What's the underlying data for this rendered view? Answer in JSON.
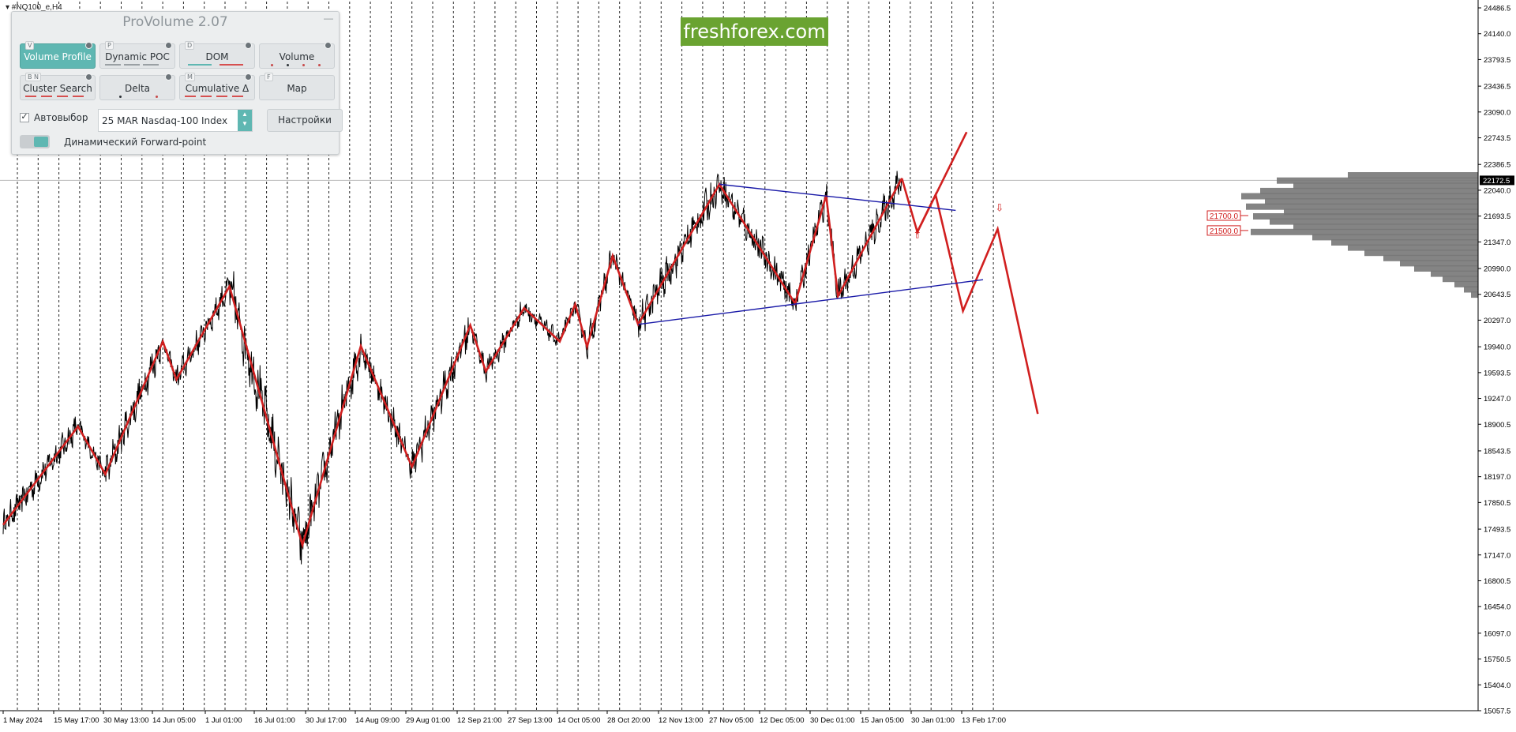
{
  "symbol_label": "▾ #NQ100_e,H4",
  "provolume": {
    "title": "ProVolume 2.07",
    "buttons": [
      {
        "label": "Volume Profile",
        "hotkey": "V",
        "active": true
      },
      {
        "label": "Dynamic POC",
        "hotkey": "P",
        "active": false
      },
      {
        "label": "DOM",
        "hotkey": "D",
        "active": false
      },
      {
        "label": "Volume",
        "hotkey": "",
        "active": false
      },
      {
        "label": "Cluster Search",
        "hotkey": "B N",
        "active": false
      },
      {
        "label": "Delta",
        "hotkey": "",
        "active": false
      },
      {
        "label": "Cumulative Δ",
        "hotkey": "M",
        "active": false
      },
      {
        "label": "Map",
        "hotkey": "F",
        "active": false
      }
    ],
    "autoselect_label": "Автовыбор",
    "autoselect_checked": true,
    "instrument_value": "25 MAR Nasdaq-100 Index",
    "settings_label": "Настройки",
    "forward_point_label": "Динамический Forward-point",
    "forward_point_on": true
  },
  "watermark": "freshforex.com",
  "colors": {
    "price": "#000000",
    "zigzag": "#d11f1f",
    "forecast": "#d11f1f",
    "channel": "#1a1aa8",
    "profile": "#777777",
    "accent": "#5fb7b2",
    "brand_green": "#6aa331"
  },
  "chart_data": {
    "type": "line",
    "y_ticks": [
      "24486.5",
      "24140.0",
      "23793.5",
      "23436.5",
      "23090.0",
      "22743.5",
      "22386.5",
      "22040.0",
      "21693.5",
      "21347.0",
      "20990.0",
      "20643.5",
      "20297.0",
      "19940.0",
      "19593.5",
      "19247.0",
      "18900.5",
      "18543.5",
      "18197.0",
      "17850.5",
      "17493.5",
      "17147.0",
      "16800.5",
      "16454.0",
      "16097.0",
      "15750.5",
      "15404.0",
      "15057.5"
    ],
    "ylim": [
      15000,
      24600
    ],
    "x_ticks": [
      "1 May 2024",
      "15 May 17:00",
      "30 May 13:00",
      "14 Jun 05:00",
      "1 Jul 01:00",
      "16 Jul 01:00",
      "30 Jul 17:00",
      "14 Aug 09:00",
      "29 Aug 01:00",
      "12 Sep 21:00",
      "27 Sep 13:00",
      "14 Oct 05:00",
      "28 Oct 20:00",
      "12 Nov 13:00",
      "27 Nov 05:00",
      "12 Dec 05:00",
      "30 Dec 01:00",
      "15 Jan 05:00",
      "30 Jan 01:00",
      "13 Feb 17:00"
    ],
    "current_price": "22172.5",
    "level_labels": [
      "21700.0",
      "21500.0"
    ],
    "zigzag_pivots": [
      {
        "bar": 0,
        "value": 17550
      },
      {
        "bar": 82,
        "value": 18870
      },
      {
        "bar": 112,
        "value": 18230
      },
      {
        "bar": 175,
        "value": 20010
      },
      {
        "bar": 190,
        "value": 19500
      },
      {
        "bar": 248,
        "value": 20750
      },
      {
        "bar": 328,
        "value": 17280
      },
      {
        "bar": 392,
        "value": 19950
      },
      {
        "bar": 448,
        "value": 18330
      },
      {
        "bar": 512,
        "value": 20230
      },
      {
        "bar": 529,
        "value": 19610
      },
      {
        "bar": 571,
        "value": 20460
      },
      {
        "bar": 610,
        "value": 20010
      },
      {
        "bar": 627,
        "value": 20510
      },
      {
        "bar": 640,
        "value": 19940
      },
      {
        "bar": 668,
        "value": 21160
      },
      {
        "bar": 696,
        "value": 20240
      },
      {
        "bar": 785,
        "value": 22120
      },
      {
        "bar": 868,
        "value": 20520
      },
      {
        "bar": 902,
        "value": 21970
      },
      {
        "bar": 915,
        "value": 20620
      },
      {
        "bar": 985,
        "value": 22200
      }
    ],
    "forecast_path": [
      {
        "bar": 985,
        "value": 22200
      },
      {
        "bar": 1002,
        "value": 21480
      },
      {
        "bar": 1022,
        "value": 21980
      },
      {
        "bar": 1052,
        "value": 20420
      },
      {
        "bar": 1090,
        "value": 21520
      },
      {
        "bar": 1134,
        "value": 19040
      }
    ],
    "forecast_up_branch": [
      {
        "bar": 1002,
        "value": 21480
      },
      {
        "bar": 1056,
        "value": 22820
      }
    ],
    "channel_upper": [
      {
        "bar": 785,
        "value": 22120
      },
      {
        "bar": 1044,
        "value": 21770
      }
    ],
    "channel_lower": [
      {
        "bar": 696,
        "value": 20240
      },
      {
        "bar": 1074,
        "value": 20840
      }
    ],
    "volume_profile": [
      {
        "price": 22240,
        "volume": 0.55
      },
      {
        "price": 22170,
        "volume": 0.85
      },
      {
        "price": 22100,
        "volume": 0.78
      },
      {
        "price": 22030,
        "volume": 0.92
      },
      {
        "price": 21960,
        "volume": 1.0
      },
      {
        "price": 21890,
        "volume": 0.9
      },
      {
        "price": 21820,
        "volume": 0.98
      },
      {
        "price": 21750,
        "volume": 0.82
      },
      {
        "price": 21690,
        "volume": 0.95
      },
      {
        "price": 21620,
        "volume": 0.88
      },
      {
        "price": 21550,
        "volume": 0.78
      },
      {
        "price": 21480,
        "volume": 0.96
      },
      {
        "price": 21410,
        "volume": 0.7
      },
      {
        "price": 21340,
        "volume": 0.62
      },
      {
        "price": 21270,
        "volume": 0.55
      },
      {
        "price": 21200,
        "volume": 0.48
      },
      {
        "price": 21130,
        "volume": 0.4
      },
      {
        "price": 21060,
        "volume": 0.33
      },
      {
        "price": 20990,
        "volume": 0.27
      },
      {
        "price": 20920,
        "volume": 0.2
      },
      {
        "price": 20850,
        "volume": 0.15
      },
      {
        "price": 20780,
        "volume": 0.1
      },
      {
        "price": 20710,
        "volume": 0.06
      },
      {
        "price": 20640,
        "volume": 0.03
      }
    ]
  }
}
